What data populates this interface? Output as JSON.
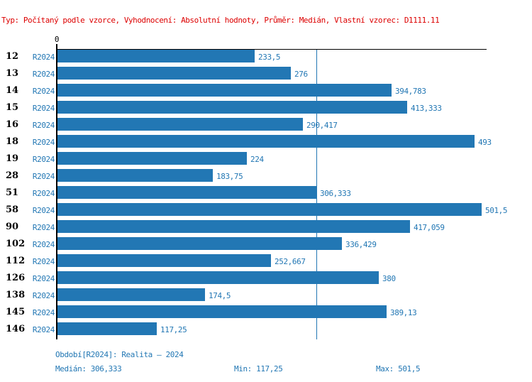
{
  "header": {
    "text": "Typ: Počítaný podle vzorce, Vyhodnocení: Absolutní hodnoty, Průměr: Medián, Vlastní vzorec: D1111.11"
  },
  "chart_data": {
    "type": "bar",
    "orientation": "horizontal",
    "title": "",
    "xlabel": "",
    "ylabel": "",
    "axis_zero_label": "0",
    "series_label": "R2024",
    "categories": [
      "12",
      "13",
      "14",
      "15",
      "16",
      "18",
      "19",
      "28",
      "51",
      "58",
      "90",
      "102",
      "112",
      "126",
      "138",
      "145",
      "146"
    ],
    "values": [
      233.5,
      276,
      394.783,
      413.333,
      290.417,
      493,
      224,
      183.75,
      306.333,
      501.5,
      417.059,
      336.429,
      252.667,
      380,
      174.5,
      389.13,
      117.25
    ],
    "value_labels": [
      "233,5",
      "276",
      "394,783",
      "413,333",
      "290,417",
      "493",
      "224",
      "183,75",
      "306,333",
      "501,5",
      "417,059",
      "336,429",
      "252,667",
      "380",
      "174,5",
      "389,13",
      "117,25"
    ],
    "xlim": [
      0,
      507
    ],
    "grid": false,
    "legend_position": "none",
    "median_value": 306.333,
    "bar_color": "#2277b4",
    "median_line_color": "#2277b4",
    "label_color": "#2277b4"
  },
  "footer": {
    "period_label": "Období[R2024]: Realita – 2024",
    "median_label": "Medián: 306,333",
    "min_label": "Min: 117,25",
    "max_label": "Max: 501,5"
  },
  "colors": {
    "header_text": "#dd0000",
    "axis": "#000000",
    "background": "#ffffff"
  }
}
